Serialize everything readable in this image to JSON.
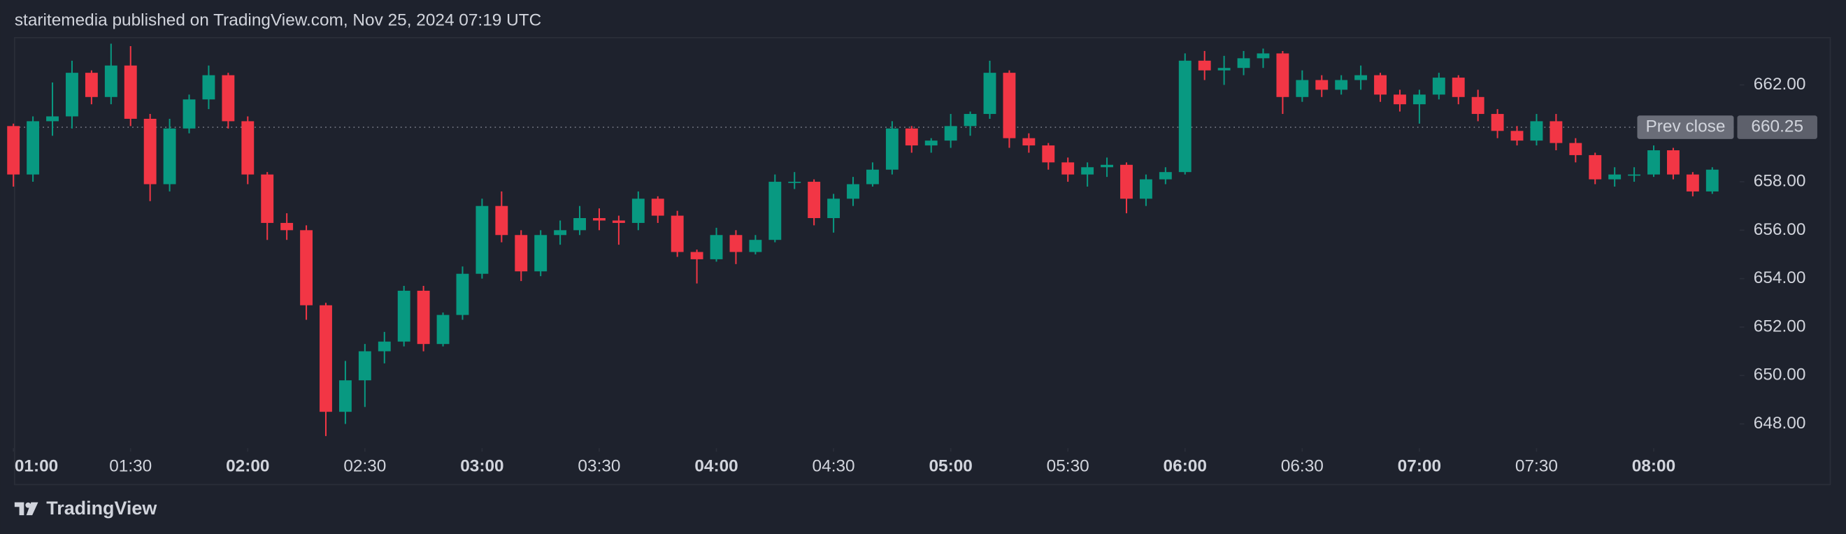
{
  "header": {
    "text": "staritemedia published on TradingView.com, Nov 25, 2024 07:19 UTC"
  },
  "chart_data": {
    "type": "candlestick",
    "up_color": "#089981",
    "down_color": "#f23645",
    "x": [
      "01:00",
      "01:05",
      "01:10",
      "01:15",
      "01:20",
      "01:25",
      "01:30",
      "01:35",
      "01:40",
      "01:45",
      "01:50",
      "01:55",
      "02:00",
      "02:05",
      "02:10",
      "02:15",
      "02:20",
      "02:25",
      "02:30",
      "02:35",
      "02:40",
      "02:45",
      "02:50",
      "02:55",
      "03:00",
      "03:05",
      "03:10",
      "03:15",
      "03:20",
      "03:25",
      "03:30",
      "03:35",
      "03:40",
      "03:45",
      "03:50",
      "03:55",
      "04:00",
      "04:05",
      "04:10",
      "04:15",
      "04:20",
      "04:25",
      "04:30",
      "04:35",
      "04:40",
      "04:45",
      "04:50",
      "04:55",
      "05:00",
      "05:05",
      "05:10",
      "05:15",
      "05:20",
      "05:25",
      "05:30",
      "05:35",
      "05:40",
      "05:45",
      "05:50",
      "05:55",
      "06:00",
      "06:05",
      "06:10",
      "06:15",
      "06:20",
      "06:25",
      "06:30",
      "06:35",
      "06:40",
      "06:45",
      "06:50",
      "06:55",
      "07:00",
      "07:05",
      "07:10",
      "07:15",
      "07:20",
      "07:25",
      "07:30",
      "07:35",
      "07:40",
      "07:45",
      "07:50",
      "07:55",
      "08:00",
      "08:05",
      "08:10",
      "08:15"
    ],
    "open": [
      660.3,
      658.3,
      660.5,
      660.7,
      662.5,
      661.5,
      662.8,
      660.6,
      657.9,
      660.2,
      661.4,
      662.4,
      660.5,
      658.3,
      656.3,
      656.0,
      652.9,
      648.5,
      649.8,
      651.0,
      651.4,
      653.5,
      651.3,
      652.5,
      654.2,
      657.0,
      655.8,
      654.3,
      655.8,
      656.0,
      656.5,
      656.4,
      656.3,
      657.3,
      656.6,
      655.1,
      654.8,
      655.8,
      655.1,
      655.6,
      658.0,
      658.0,
      656.5,
      657.3,
      657.9,
      658.5,
      660.2,
      659.5,
      659.7,
      660.3,
      660.8,
      662.5,
      659.8,
      659.5,
      658.8,
      658.3,
      658.6,
      658.7,
      657.3,
      658.1,
      658.4,
      663.0,
      662.6,
      662.7,
      663.1,
      663.3,
      661.5,
      662.2,
      661.8,
      662.2,
      662.4,
      661.6,
      661.2,
      661.6,
      662.3,
      661.5,
      660.8,
      660.1,
      659.7,
      660.5,
      659.6,
      659.1,
      658.1,
      658.3,
      658.3,
      659.3,
      658.3,
      657.6
    ],
    "high": [
      660.4,
      660.7,
      662.1,
      663.0,
      662.6,
      663.7,
      663.6,
      660.8,
      660.6,
      661.6,
      662.8,
      662.5,
      660.7,
      658.4,
      656.7,
      656.2,
      653.0,
      650.6,
      651.3,
      651.8,
      653.7,
      653.7,
      652.6,
      654.5,
      657.3,
      657.6,
      656.0,
      656.0,
      656.4,
      657.0,
      656.9,
      656.6,
      657.6,
      657.4,
      656.8,
      655.2,
      656.1,
      656.0,
      655.8,
      658.3,
      658.4,
      658.1,
      657.5,
      658.2,
      658.8,
      660.5,
      660.3,
      659.8,
      660.8,
      660.9,
      663.0,
      662.6,
      660.0,
      659.6,
      659.0,
      658.8,
      659.0,
      658.8,
      658.3,
      658.6,
      663.3,
      663.4,
      663.2,
      663.4,
      663.5,
      663.4,
      662.6,
      662.4,
      662.4,
      662.8,
      662.5,
      661.8,
      661.8,
      662.5,
      662.4,
      661.8,
      661.0,
      660.3,
      660.8,
      660.8,
      659.8,
      659.2,
      658.6,
      658.6,
      659.5,
      659.4,
      658.4,
      658.6
    ],
    "low": [
      657.8,
      658.0,
      659.9,
      660.2,
      661.2,
      661.2,
      660.3,
      657.2,
      657.6,
      660.0,
      661.0,
      660.2,
      657.9,
      655.6,
      655.6,
      652.3,
      647.5,
      648.0,
      648.7,
      650.5,
      651.2,
      651.0,
      651.2,
      652.3,
      654.0,
      655.5,
      653.9,
      654.1,
      655.4,
      655.8,
      656.0,
      655.4,
      656.0,
      656.3,
      654.9,
      653.8,
      654.7,
      654.6,
      655.0,
      655.5,
      657.7,
      656.2,
      655.9,
      657.0,
      657.8,
      658.3,
      659.2,
      659.2,
      659.4,
      659.9,
      660.6,
      659.4,
      659.2,
      658.5,
      658.0,
      657.8,
      658.2,
      656.7,
      657.0,
      657.9,
      658.3,
      662.2,
      662.0,
      662.4,
      662.7,
      660.8,
      661.3,
      661.5,
      661.6,
      661.8,
      661.3,
      660.9,
      660.4,
      661.4,
      661.2,
      660.5,
      659.8,
      659.5,
      659.5,
      659.3,
      658.8,
      657.9,
      657.8,
      658.0,
      658.2,
      658.1,
      657.4,
      657.5
    ],
    "close": [
      658.3,
      660.5,
      660.7,
      662.5,
      661.5,
      662.8,
      660.6,
      657.9,
      660.2,
      661.4,
      662.4,
      660.5,
      658.3,
      656.3,
      656.0,
      652.9,
      648.5,
      649.8,
      651.0,
      651.4,
      653.5,
      651.3,
      652.5,
      654.2,
      657.0,
      655.8,
      654.3,
      655.8,
      656.0,
      656.5,
      656.4,
      656.3,
      657.3,
      656.6,
      655.1,
      654.8,
      655.8,
      655.1,
      655.6,
      658.0,
      658.0,
      656.5,
      657.3,
      657.9,
      658.5,
      660.2,
      659.5,
      659.7,
      660.3,
      660.8,
      662.5,
      659.8,
      659.5,
      658.8,
      658.3,
      658.6,
      658.7,
      657.3,
      658.1,
      658.4,
      663.0,
      662.6,
      662.7,
      663.1,
      663.3,
      661.5,
      662.2,
      661.8,
      662.2,
      662.4,
      661.6,
      661.2,
      661.6,
      662.3,
      661.5,
      660.8,
      660.1,
      659.7,
      660.5,
      659.6,
      659.1,
      658.1,
      658.3,
      658.3,
      659.3,
      658.3,
      657.6,
      658.5
    ],
    "xlim": [
      "01:00",
      "08:22"
    ],
    "xticks": [
      "01:00",
      "01:30",
      "02:00",
      "02:30",
      "03:00",
      "03:30",
      "04:00",
      "04:30",
      "05:00",
      "05:30",
      "06:00",
      "06:30",
      "07:00",
      "07:30",
      "08:00"
    ],
    "ylim": [
      647,
      664
    ],
    "yticks": [
      {
        "value": 648,
        "label": "648.00"
      },
      {
        "value": 650,
        "label": "650.00"
      },
      {
        "value": 652,
        "label": "652.00"
      },
      {
        "value": 654,
        "label": "654.00"
      },
      {
        "value": 656,
        "label": "656.00"
      },
      {
        "value": 658,
        "label": "658.00"
      },
      {
        "value": 660,
        "label": "660.00"
      },
      {
        "value": 662,
        "label": "662.00"
      }
    ],
    "prev_close": {
      "label": "Prev close",
      "value": 660.25
    }
  },
  "footer": {
    "brand": "TradingView"
  }
}
